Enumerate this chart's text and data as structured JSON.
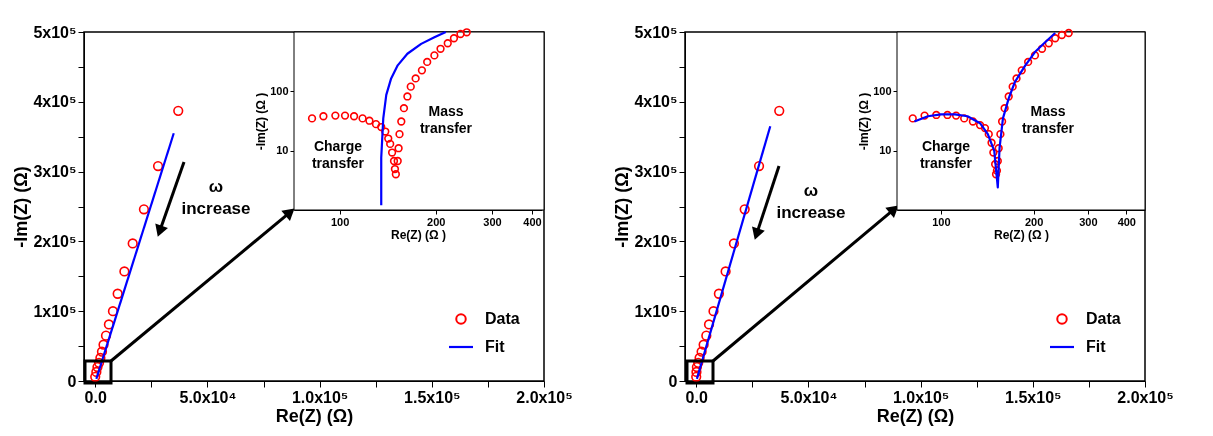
{
  "chart_data": [
    {
      "type": "scatter",
      "xlabel": "Re(Z) (Ω)",
      "ylabel": "-Im(Z) (Ω)",
      "xlim": [
        -5000,
        200000
      ],
      "ylim": [
        0,
        500000
      ],
      "xticks": [
        {
          "value": 0,
          "label": "0.0"
        },
        {
          "value": 25000,
          "label": null
        },
        {
          "value": 50000,
          "label": "5.0x10⁴"
        },
        {
          "value": 75000,
          "label": null
        },
        {
          "value": 100000,
          "label": "1.0x10⁵"
        },
        {
          "value": 125000,
          "label": null
        },
        {
          "value": 150000,
          "label": "1.5x10⁵"
        },
        {
          "value": 175000,
          "label": null
        },
        {
          "value": 200000,
          "label": "2.0x10⁵"
        }
      ],
      "yticks": [
        0,
        {
          "value": 50000,
          "label": null
        },
        {
          "value": 100000,
          "label": "1x10⁵"
        },
        {
          "value": 150000,
          "label": null
        },
        {
          "value": 200000,
          "label": "2x10⁵"
        },
        {
          "value": 250000,
          "label": null
        },
        {
          "value": 300000,
          "label": "3x10⁵"
        },
        {
          "value": 350000,
          "label": null
        },
        {
          "value": 400000,
          "label": "4x10⁵"
        },
        {
          "value": 450000,
          "label": null
        },
        {
          "value": 500000,
          "label": "5x10⁵"
        }
      ],
      "grid": false,
      "legend": "bottom right",
      "annotations": [
        "ω increase"
      ],
      "series": [
        {
          "name": "Data",
          "marker": "circle",
          "color": "#ff0000",
          "x": [
            37000,
            28000,
            21700,
            16700,
            13000,
            10000,
            7900,
            6100,
            4800,
            3700,
            3000,
            2300,
            1700,
            1000,
            500,
            0
          ],
          "values": [
            387000,
            308000,
            246000,
            197000,
            157000,
            125000,
            100000,
            81000,
            65000,
            52000,
            42000,
            33000,
            26000,
            20000,
            13000,
            6000
          ]
        },
        {
          "name": "Fit",
          "type": "line",
          "color": "#0000ff",
          "x": [
            500,
            35000
          ],
          "values": [
            3000,
            355000
          ]
        }
      ]
    },
    {
      "type": "scatter",
      "xlabel": "Re(Z) (Ω )",
      "ylabel": "-Im(Z) (Ω )",
      "log": "xy",
      "xlim": [
        72,
        430
      ],
      "ylim": [
        1,
        1000
      ],
      "xticks": [
        100,
        200,
        300,
        400
      ],
      "yticks": [
        10,
        100
      ],
      "grid": false,
      "annotations": [
        "Charge transfer",
        "Mass transfer"
      ],
      "series": [
        {
          "marker": "circle",
          "color": "#ff0000",
          "x": [
            82,
            89,
            97,
            104,
            111,
            118,
            124,
            130,
            135,
            139,
            142,
            144,
            146,
            148,
            149,
            150,
            152,
            153,
            154,
            156,
            159,
            163,
            167,
            173,
            181,
            188,
            198,
            207,
            218,
            228,
            239,
            250
          ],
          "values": [
            35,
            38,
            39,
            39,
            38,
            35,
            32,
            28,
            25,
            21,
            16,
            13,
            9.3,
            6.7,
            4.9,
            4.0,
            6.7,
            11,
            19,
            31,
            52,
            82,
            120,
            165,
            226,
            313,
            403,
            521,
            646,
            785,
            926,
            988
          ]
        },
        {
          "type": "line",
          "color": "#0000ff",
          "x": [
            135,
            135,
            137,
            140,
            145,
            152,
            163,
            180,
            198,
            215
          ],
          "values": [
            1.2,
            7.6,
            35,
            87,
            165,
            274,
            430,
            631,
            813,
            1000
          ]
        }
      ]
    },
    {
      "type": "scatter",
      "xlabel": "Re(Z) (Ω)",
      "ylabel": "-Im(Z) (Ω)",
      "xlim": [
        -5000,
        200000
      ],
      "ylim": [
        0,
        500000
      ],
      "xticks": [
        {
          "value": 0,
          "label": "0.0"
        },
        {
          "value": 25000,
          "label": null
        },
        {
          "value": 50000,
          "label": "5.0x10⁴"
        },
        {
          "value": 75000,
          "label": null
        },
        {
          "value": 100000,
          "label": "1.0x10⁵"
        },
        {
          "value": 125000,
          "label": null
        },
        {
          "value": 150000,
          "label": "1.5x10⁵"
        },
        {
          "value": 175000,
          "label": null
        },
        {
          "value": 200000,
          "label": "2.0x10⁵"
        }
      ],
      "yticks": [
        0,
        {
          "value": 50000,
          "label": null
        },
        {
          "value": 100000,
          "label": "1x10⁵"
        },
        {
          "value": 150000,
          "label": null
        },
        {
          "value": 200000,
          "label": "2x10⁵"
        },
        {
          "value": 250000,
          "label": null
        },
        {
          "value": 300000,
          "label": "3x10⁵"
        },
        {
          "value": 350000,
          "label": null
        },
        {
          "value": 400000,
          "label": "4x10⁵"
        },
        {
          "value": 450000,
          "label": null
        },
        {
          "value": 500000,
          "label": "5x10⁵"
        }
      ],
      "grid": false,
      "legend": "bottom right",
      "annotations": [
        "ω increase"
      ],
      "series": [
        {
          "name": "Data",
          "marker": "circle",
          "color": "#ff0000",
          "x": [
            37000,
            28000,
            21600,
            16800,
            13100,
            10100,
            7700,
            5700,
            4500,
            3300,
            2400,
            1500,
            900,
            300,
            100,
            0
          ],
          "values": [
            387000,
            308000,
            246000,
            197000,
            157000,
            125000,
            100000,
            81000,
            65000,
            52000,
            42000,
            33000,
            26000,
            20000,
            13000,
            6000
          ]
        },
        {
          "name": "Fit",
          "type": "line",
          "color": "#0000ff",
          "x": [
            300,
            33000
          ],
          "values": [
            3000,
            365000
          ]
        }
      ]
    },
    {
      "type": "scatter",
      "xlabel": "Re(Z) (Ω )",
      "ylabel": "-Im(Z) (Ω )",
      "log": "xy",
      "xlim": [
        72,
        460
      ],
      "ylim": [
        1,
        1000
      ],
      "xticks": [
        100,
        200,
        300,
        400
      ],
      "yticks": [
        10,
        100
      ],
      "grid": false,
      "annotations": [
        "Charge transfer",
        "Mass transfer"
      ],
      "series": [
        {
          "marker": "circle",
          "color": "#ff0000",
          "x": [
            81,
            88.5,
            96.6,
            105,
            112,
            119,
            127,
            134,
            139,
            143,
            146,
            148,
            150,
            151,
            152,
            153,
            154,
            156,
            158,
            161,
            166,
            171,
            176,
            183,
            192,
            202,
            213,
            224,
            235,
            247,
            260
          ],
          "values": [
            35,
            39,
            40,
            40,
            39,
            35,
            31,
            27,
            24,
            19,
            13.6,
            9.3,
            5.9,
            4.0,
            4.6,
            6.7,
            11,
            19,
            31,
            52,
            82,
            120,
            165,
            226,
            313,
            403,
            521,
            646,
            785,
            891,
            962
          ]
        },
        {
          "type": "line",
          "color": "#0000ff",
          "x": [
            82,
            90.7,
            100,
            111,
            122,
            134,
            142,
            149,
            153,
            155,
            159,
            166,
            174,
            188,
            202,
            218,
            235
          ],
          "values": [
            31,
            38,
            41,
            41,
            38,
            29,
            19,
            9.9,
            2.4,
            11,
            35,
            76,
            145,
            274,
            459,
            673,
            960
          ]
        }
      ]
    }
  ]
}
